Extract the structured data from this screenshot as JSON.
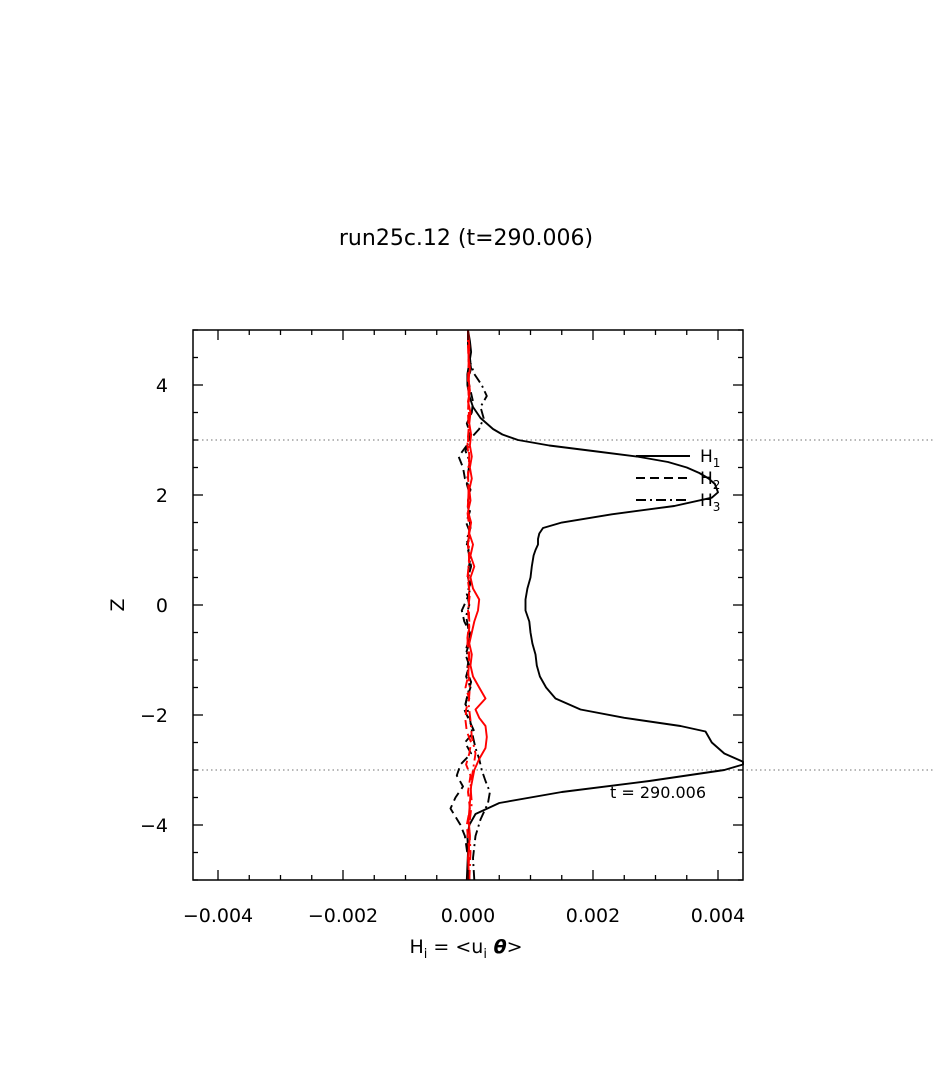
{
  "chart_data": {
    "type": "line",
    "title": "run25c.12 (t=290.006)",
    "xlabel": {
      "H": "H",
      "i": "i",
      "eq": " = <u",
      "i2": "i",
      "theta": " θ",
      "close": ">"
    },
    "ylabel": "Z",
    "xlim": [
      -0.0044,
      0.0044
    ],
    "ylim": [
      -5,
      5
    ],
    "xticks": [
      -0.004,
      -0.002,
      0.0,
      0.002,
      0.004
    ],
    "xtick_labels": [
      "−0.004",
      "−0.002",
      "0.000",
      "0.002",
      "0.004"
    ],
    "yticks": [
      -4,
      -2,
      0,
      2,
      4
    ],
    "ytick_labels": [
      "−4",
      "−2",
      "0",
      "2",
      "4"
    ],
    "reference_lines_z": [
      3,
      -3
    ],
    "annotation": "t  =  290.006",
    "legend_position": "top-right",
    "legend": [
      {
        "base": "H",
        "sub": "1",
        "style": "solid"
      },
      {
        "base": "H",
        "sub": "2",
        "style": "dashed"
      },
      {
        "base": "H",
        "sub": "3",
        "style": "dashdot"
      }
    ],
    "series": [
      {
        "name": "H1",
        "color": "#000000",
        "style": "solid",
        "z": [
          -5,
          -4.5,
          -4.2,
          -4.0,
          -3.8,
          -3.6,
          -3.4,
          -3.2,
          -3.0,
          -2.9,
          -2.85,
          -2.7,
          -2.5,
          -2.3,
          -2.2,
          -2.05,
          -1.9,
          -1.7,
          -1.5,
          -1.3,
          -1.1,
          -0.9,
          -0.7,
          -0.5,
          -0.3,
          -0.1,
          0.1,
          0.3,
          0.5,
          0.7,
          0.9,
          1.0,
          1.1,
          1.2,
          1.3,
          1.4,
          1.5,
          1.65,
          1.8,
          1.95,
          2.05,
          2.2,
          2.3,
          2.4,
          2.5,
          2.6,
          2.7,
          2.8,
          2.9,
          3.0,
          3.1,
          3.2,
          3.4,
          3.6,
          3.8,
          4.0,
          4.2,
          4.4,
          4.6,
          4.8,
          5.0
        ],
        "x": [
          -2e-05,
          0.0,
          -1e-05,
          2e-05,
          0.00012,
          0.0005,
          0.0015,
          0.0029,
          0.0041,
          0.0044,
          0.0044,
          0.0041,
          0.0039,
          0.0038,
          0.0034,
          0.0025,
          0.0018,
          0.0014,
          0.00125,
          0.00115,
          0.0011,
          0.00108,
          0.00103,
          0.001,
          0.00098,
          0.00092,
          0.00092,
          0.00095,
          0.001,
          0.00102,
          0.00105,
          0.00108,
          0.00112,
          0.00112,
          0.00114,
          0.0012,
          0.0015,
          0.0023,
          0.0033,
          0.0039,
          0.004,
          0.00395,
          0.00385,
          0.0037,
          0.0035,
          0.0032,
          0.0027,
          0.002,
          0.0013,
          0.0008,
          0.00055,
          0.0004,
          0.0002,
          8e-05,
          2e-05,
          -1e-05,
          -1e-05,
          2e-05,
          5e-05,
          3e-05,
          0.0
        ]
      },
      {
        "name": "H2",
        "color": "#000000",
        "style": "dashed",
        "z": [
          -5,
          -4.6,
          -4.2,
          -4.0,
          -3.7,
          -3.5,
          -3.3,
          -3.1,
          -2.9,
          -2.7,
          -2.5,
          -2.3,
          -2.1,
          -1.9,
          -1.7,
          -1.5,
          -1.3,
          -1.1,
          -0.9,
          -0.7,
          -0.5,
          -0.3,
          -0.1,
          0.1,
          0.3,
          0.5,
          0.7,
          0.9,
          1.1,
          1.3,
          1.5,
          1.7,
          1.9,
          2.1,
          2.3,
          2.5,
          2.7,
          2.9,
          3.1,
          3.3,
          3.5,
          3.7,
          3.9,
          4.1,
          4.3,
          4.5,
          4.7,
          5.0
        ],
        "x": [
          2e-05,
          0.0,
          -5e-05,
          -0.00012,
          -0.00028,
          -0.0002,
          -8e-05,
          -0.00018,
          -0.00012,
          5e-05,
          -5e-05,
          0.0001,
          2e-05,
          -6e-05,
          -2e-05,
          4e-05,
          -3e-05,
          2e-05,
          -4e-05,
          2e-05,
          3e-05,
          -6e-05,
          -0.0001,
          -2e-05,
          4e-05,
          0.0,
          5e-05,
          2e-05,
          -2e-05,
          4e-05,
          -3e-05,
          3e-05,
          0.0,
          4e-05,
          -5e-05,
          -8e-05,
          -0.00015,
          -2e-05,
          4e-05,
          -2e-05,
          6e-05,
          8e-05,
          4e-05,
          0.0,
          5e-05,
          2e-05,
          0.0,
          0.0
        ]
      },
      {
        "name": "H3",
        "color": "#000000",
        "style": "dashdot",
        "z": [
          -5,
          -4.6,
          -4.2,
          -3.9,
          -3.6,
          -3.4,
          -3.2,
          -3.0,
          -2.8,
          -2.6,
          -2.4,
          -2.2,
          -2.0,
          -1.8,
          -1.6,
          -1.4,
          -1.2,
          -1.0,
          -0.8,
          -0.6,
          -0.4,
          -0.2,
          0.0,
          0.2,
          0.4,
          0.6,
          0.8,
          1.0,
          1.2,
          1.4,
          1.6,
          1.8,
          2.0,
          2.2,
          2.4,
          2.6,
          2.8,
          3.0,
          3.2,
          3.4,
          3.6,
          3.8,
          4.0,
          4.2,
          4.4,
          4.6,
          4.8,
          5.0
        ],
        "x": [
          0.0001,
          8e-05,
          0.00012,
          0.0002,
          0.00032,
          0.00035,
          0.00028,
          0.00022,
          0.00018,
          0.00012,
          8e-05,
          5e-05,
          2e-05,
          -4e-05,
          0.0,
          5e-05,
          -2e-05,
          1e-05,
          -3e-05,
          2e-05,
          0.0,
          -3e-05,
          2e-05,
          -2e-05,
          4e-05,
          0.0,
          3e-05,
          1e-05,
          -2e-05,
          4e-05,
          2e-05,
          0.0,
          3e-05,
          -2e-05,
          0.0,
          3e-05,
          -4e-05,
          2e-05,
          0.00018,
          0.00025,
          0.0002,
          0.0003,
          0.00022,
          0.0001,
          4e-05,
          2e-05,
          0.0,
          0.0
        ]
      },
      {
        "name": "H1 (red)",
        "color": "#ff0000",
        "style": "solid",
        "z": [
          -5,
          -4.6,
          -4.2,
          -3.9,
          -3.6,
          -3.3,
          -3.0,
          -2.8,
          -2.6,
          -2.4,
          -2.2,
          -2.05,
          -1.9,
          -1.7,
          -1.5,
          -1.3,
          -1.1,
          -0.9,
          -0.7,
          -0.5,
          -0.3,
          -0.1,
          0.1,
          0.3,
          0.5,
          0.7,
          0.9,
          1.1,
          1.3,
          1.5,
          1.7,
          1.9,
          2.1,
          2.3,
          2.5,
          2.7,
          2.9,
          3.1,
          3.3,
          3.5,
          3.7,
          3.9,
          4.1,
          4.3,
          4.5,
          4.7,
          5.0
        ],
        "x": [
          2e-05,
          0.0,
          3e-05,
          1e-05,
          3e-05,
          5e-05,
          0.0001,
          0.00018,
          0.00028,
          0.0003,
          0.00028,
          0.00018,
          0.00012,
          0.00028,
          0.00018,
          8e-05,
          4e-05,
          6e-05,
          2e-05,
          6e-05,
          0.0001,
          0.00016,
          0.00018,
          8e-05,
          4e-05,
          0.0001,
          4e-05,
          8e-05,
          2e-05,
          5e-05,
          0.0,
          4e-05,
          2e-05,
          6e-05,
          3e-05,
          6e-05,
          3e-05,
          5e-05,
          2e-05,
          4e-05,
          0.0,
          3e-05,
          1e-05,
          3e-05,
          1e-05,
          2e-05,
          0.0
        ]
      },
      {
        "name": "H2 (red)",
        "color": "#ff0000",
        "style": "dashed",
        "z": [
          -5,
          -4.5,
          -4.0,
          -3.7,
          -3.4,
          -3.1,
          -2.9,
          -2.7,
          -2.5,
          -2.3,
          -2.1,
          -1.9,
          -1.7,
          -1.5,
          -1.3,
          -1.0,
          -0.7,
          -0.4,
          -0.1,
          0.2,
          0.5,
          0.8,
          1.1,
          1.4,
          1.7,
          2.0,
          2.3,
          2.6,
          2.9,
          3.2,
          3.5,
          3.8,
          4.1,
          4.4,
          4.7,
          5.0
        ],
        "x": [
          0.0,
          2e-05,
          -2e-05,
          3e-05,
          0.0,
          4e-05,
          -3e-05,
          2e-05,
          5e-05,
          -2e-05,
          -4e-05,
          -3e-05,
          2e-05,
          -4e-05,
          0.0,
          2e-05,
          -1e-05,
          2e-05,
          0.0,
          3e-05,
          -1e-05,
          2e-05,
          0.0,
          2e-05,
          -1e-05,
          1e-05,
          0.0,
          2e-05,
          -1e-05,
          1e-05,
          0.0,
          1e-05,
          0.0,
          1e-05,
          0.0,
          0.0
        ]
      },
      {
        "name": "H3 (red)",
        "color": "#ff0000",
        "style": "dashdot",
        "z": [
          -5,
          -4.5,
          -4.0,
          -3.6,
          -3.3,
          -3.0,
          -2.7,
          -2.4,
          -2.1,
          -1.8,
          -1.5,
          -1.2,
          -0.9,
          -0.6,
          -0.3,
          0.0,
          0.3,
          0.6,
          0.9,
          1.2,
          1.5,
          1.8,
          2.1,
          2.4,
          2.7,
          3.0,
          3.3,
          3.6,
          3.9,
          4.2,
          4.5,
          4.8,
          5.0
        ],
        "x": [
          2e-05,
          4e-05,
          2e-05,
          6e-05,
          4e-05,
          8e-05,
          0.00012,
          6e-05,
          4e-05,
          1e-05,
          3e-05,
          0.0,
          2e-05,
          -1e-05,
          2e-05,
          1e-05,
          2e-05,
          0.0,
          2e-05,
          1e-05,
          2e-05,
          0.0,
          1e-05,
          0.0,
          2e-05,
          0.0,
          2e-05,
          1e-05,
          2e-05,
          1e-05,
          1e-05,
          0.0,
          0.0
        ]
      }
    ]
  }
}
